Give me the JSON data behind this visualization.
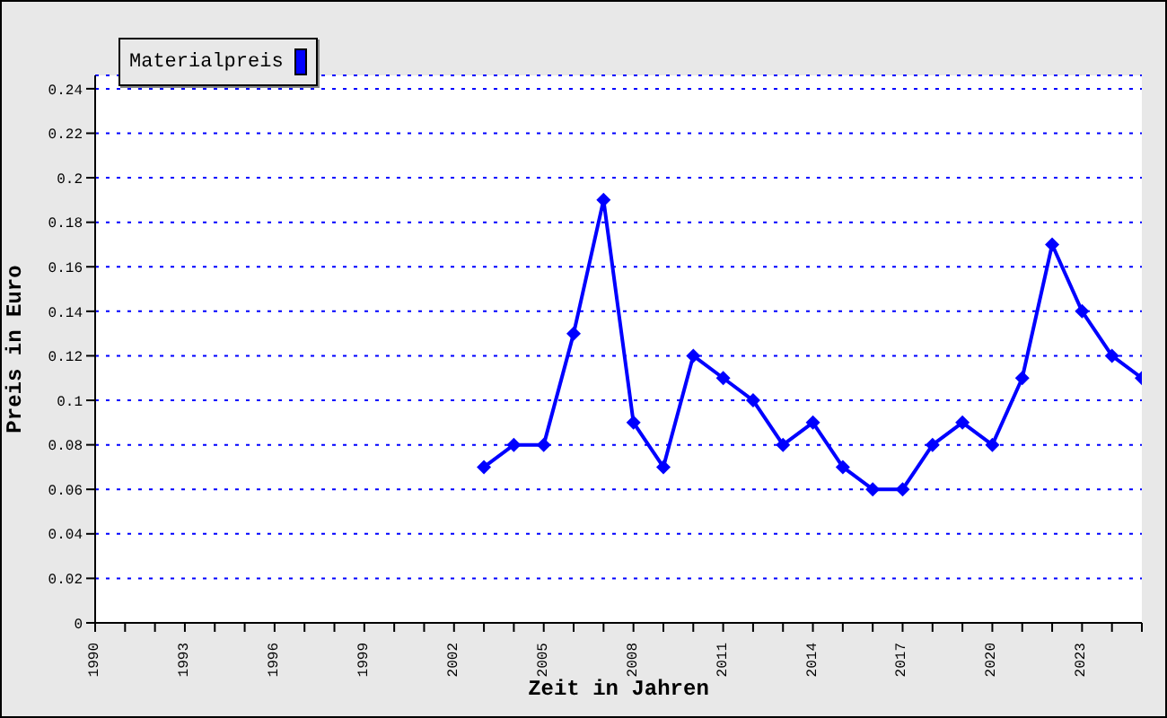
{
  "chart_data": {
    "type": "line",
    "xlabel": "Zeit in Jahren",
    "ylabel": "Preis in Euro",
    "x": [
      2003,
      2004,
      2005,
      2006,
      2007,
      2008,
      2009,
      2010,
      2011,
      2012,
      2013,
      2014,
      2015,
      2016,
      2017,
      2018,
      2019,
      2020,
      2021,
      2022,
      2023,
      2024,
      2025
    ],
    "series": [
      {
        "name": "Materialpreis",
        "color": "#0000ff",
        "values": [
          0.07,
          0.08,
          0.08,
          0.13,
          0.19,
          0.09,
          0.07,
          0.12,
          0.11,
          0.1,
          0.08,
          0.09,
          0.07,
          0.06,
          0.06,
          0.08,
          0.09,
          0.08,
          0.11,
          0.17,
          0.14,
          0.12,
          0.11
        ]
      }
    ],
    "xlim": [
      1990,
      2025
    ],
    "xticks": [
      1990,
      {
        "value": 1991,
        "label": null
      },
      {
        "value": 1992,
        "label": null
      },
      1993,
      {
        "value": 1994,
        "label": null
      },
      {
        "value": 1995,
        "label": null
      },
      1996,
      {
        "value": 1997,
        "label": null
      },
      {
        "value": 1998,
        "label": null
      },
      1999,
      {
        "value": 2000,
        "label": null
      },
      {
        "value": 2001,
        "label": null
      },
      2002,
      {
        "value": 2003,
        "label": null
      },
      {
        "value": 2004,
        "label": null
      },
      2005,
      {
        "value": 2006,
        "label": null
      },
      {
        "value": 2007,
        "label": null
      },
      2008,
      {
        "value": 2009,
        "label": null
      },
      {
        "value": 2010,
        "label": null
      },
      2011,
      {
        "value": 2012,
        "label": null
      },
      {
        "value": 2013,
        "label": null
      },
      2014,
      {
        "value": 2015,
        "label": null
      },
      {
        "value": 2016,
        "label": null
      },
      2017,
      {
        "value": 2018,
        "label": null
      },
      {
        "value": 2019,
        "label": null
      },
      2020,
      {
        "value": 2021,
        "label": null
      },
      {
        "value": 2022,
        "label": null
      },
      2023,
      {
        "value": 2024,
        "label": null
      },
      {
        "value": 2025,
        "label": null
      }
    ],
    "ylim": [
      0,
      0.246
    ],
    "yticks": [
      0,
      0.02,
      0.04,
      0.06,
      0.08,
      0.1,
      0.12,
      0.14,
      0.16,
      0.18,
      0.2,
      0.22,
      0.24
    ],
    "grid": "y",
    "legend": "top left",
    "marker": "diamond",
    "line_style": "solid"
  }
}
